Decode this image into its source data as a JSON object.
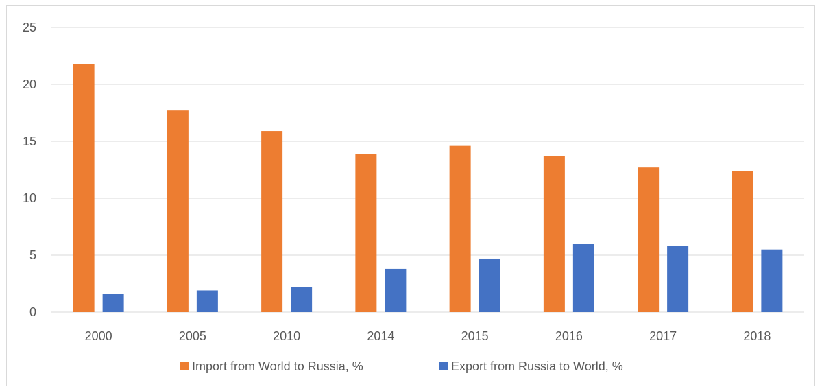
{
  "chart_data": {
    "type": "bar",
    "title": "",
    "xlabel": "",
    "ylabel": "",
    "categories": [
      "2000",
      "2005",
      "2010",
      "2014",
      "2015",
      "2016",
      "2017",
      "2018"
    ],
    "series": [
      {
        "name": "Import from World to Russia, %",
        "color": "#ed7d31",
        "values": [
          21.8,
          17.7,
          15.9,
          13.9,
          14.6,
          13.7,
          12.7,
          12.4
        ]
      },
      {
        "name": "Export from Russia to World, %",
        "color": "#4472c4",
        "values": [
          1.6,
          1.9,
          2.2,
          3.8,
          4.7,
          6.0,
          5.8,
          5.5
        ]
      }
    ],
    "ylim": [
      0,
      25
    ],
    "yticks": [
      0,
      5,
      10,
      15,
      20,
      25
    ],
    "grid": "horizontal",
    "legend_position": "bottom"
  }
}
